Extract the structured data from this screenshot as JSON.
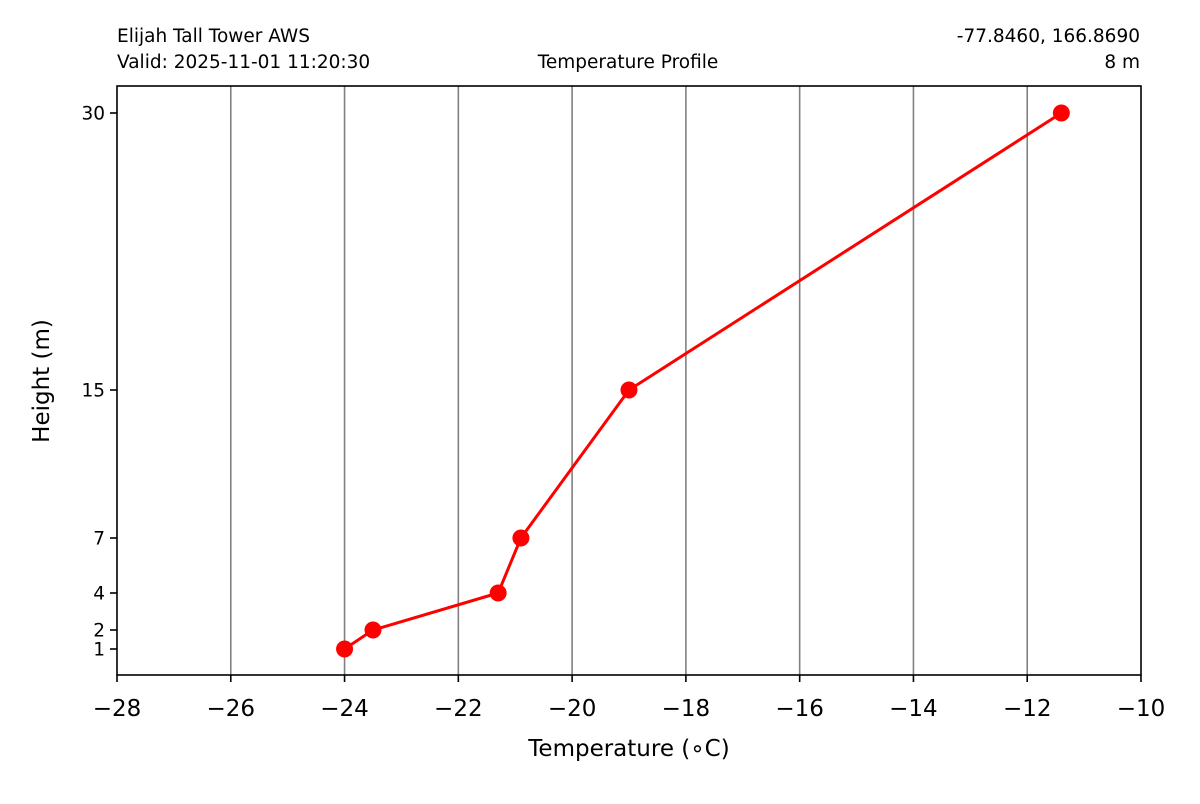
{
  "header": {
    "station": "Elijah Tall Tower AWS",
    "valid": "Valid: 2025-11-01 11:20:30",
    "title": "Temperature Profile",
    "coords": "-77.8460, 166.8690",
    "elevation": "8 m"
  },
  "chart_data": {
    "type": "line",
    "title": "Temperature Profile",
    "xlabel": "Temperature (∘C)",
    "ylabel": "Height (m)",
    "xlim": [
      -28,
      -10
    ],
    "x_ticks": [
      -28,
      -26,
      -24,
      -22,
      -20,
      -18,
      -16,
      -14,
      -12,
      -10
    ],
    "x_tick_labels": [
      "−28",
      "−26",
      "−24",
      "−22",
      "−20",
      "−18",
      "−16",
      "−14",
      "−12",
      "−10"
    ],
    "y_ticks": [
      1,
      2,
      4,
      7,
      15,
      30
    ],
    "y_tick_labels": [
      "1",
      "2",
      "4",
      "7",
      "15",
      "30"
    ],
    "y_scale": "nonlinear (ticks at measurement heights)",
    "grid": "vertical lines at x ticks",
    "series": [
      {
        "color": "#ff0000",
        "points": [
          {
            "temperature": -24.0,
            "height": 1
          },
          {
            "temperature": -23.5,
            "height": 2
          },
          {
            "temperature": -21.3,
            "height": 4
          },
          {
            "temperature": -20.9,
            "height": 7
          },
          {
            "temperature": -19.0,
            "height": 15
          },
          {
            "temperature": -11.4,
            "height": 30
          }
        ]
      }
    ]
  }
}
